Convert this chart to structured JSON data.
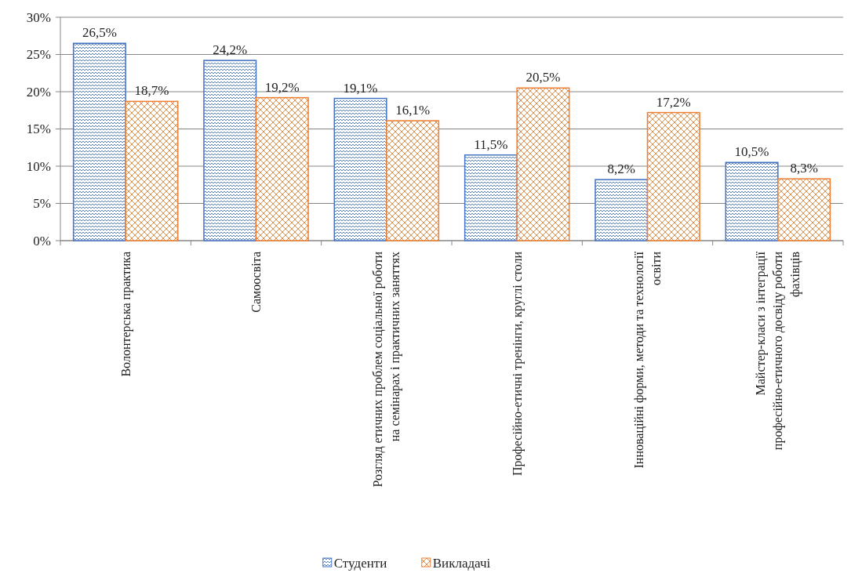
{
  "chart_data": {
    "type": "bar",
    "categories": [
      "Волонтерська практика",
      "Самоосвіта",
      "Розгляд етичних проблем соціальної роботи на семінарах і практичних заняттях",
      "Професійно-етичні тренінги, круглі столи",
      "Інноваційні форми, методи та технології освіти",
      "Майстер-класи з інтеграції професійно-етичного досвіду роботи фахівців"
    ],
    "series": [
      {
        "name": "Студенти",
        "color": "#4472c4",
        "values": [
          26.5,
          24.2,
          19.1,
          11.5,
          8.2,
          10.5
        ],
        "value_labels": [
          "26,5%",
          "24,2%",
          "19,1%",
          "11,5%",
          "8,2%",
          "10,5%"
        ]
      },
      {
        "name": "Викладачі",
        "color": "#ed7d31",
        "values": [
          18.7,
          19.2,
          16.1,
          20.5,
          17.2,
          8.3
        ],
        "value_labels": [
          "18,7%",
          "19,2%",
          "16,1%",
          "20,5%",
          "17,2%",
          "8,3%"
        ]
      }
    ],
    "ylim": [
      0,
      30
    ],
    "yticks": [
      {
        "value": 0,
        "label": "0%"
      },
      {
        "value": 5,
        "label": "5%"
      },
      {
        "value": 10,
        "label": "10%"
      },
      {
        "value": 15,
        "label": "15%"
      },
      {
        "value": 20,
        "label": "20%"
      },
      {
        "value": 25,
        "label": "25%"
      },
      {
        "value": 30,
        "label": "30%"
      }
    ],
    "grid": "y",
    "legend": "bottom"
  }
}
